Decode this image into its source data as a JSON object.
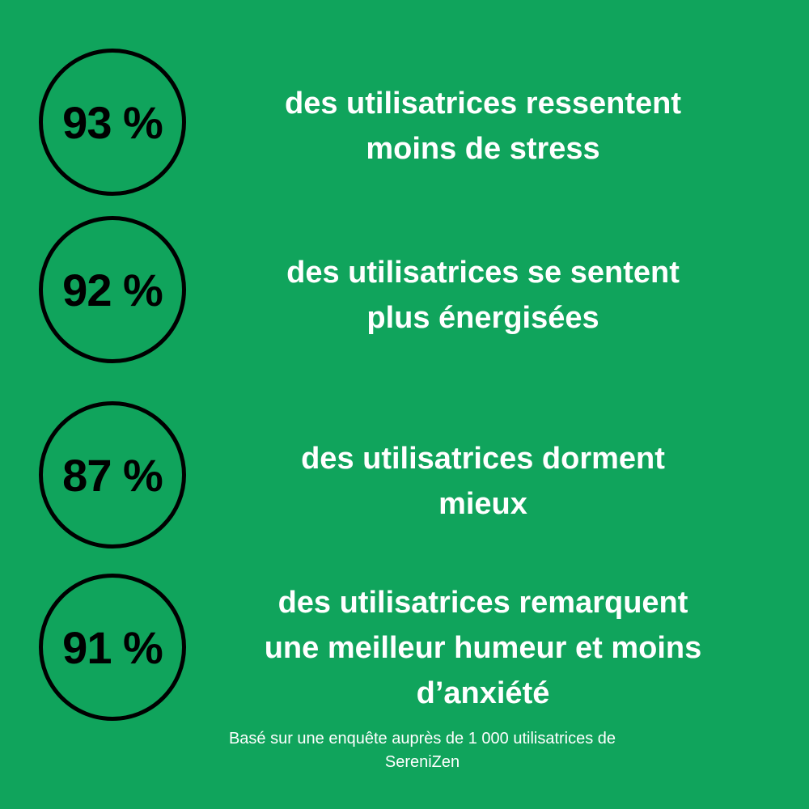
{
  "meta": {
    "background_color": "#10A45C",
    "heading_text_color": "#FFFFFF",
    "circle_border_color": "#000000",
    "percent_text_color": "#000000"
  },
  "stats": [
    {
      "percent": "93 %",
      "lines": [
        "des utilisatrices ressentent",
        "moins de stress"
      ]
    },
    {
      "percent": "92 %",
      "lines": [
        "des utilisatrices se sentent",
        "plus énergisées"
      ]
    },
    {
      "percent": "87 %",
      "lines": [
        "des utilisatrices dorment",
        "mieux"
      ]
    },
    {
      "percent": "91 %",
      "lines": [
        "des utilisatrices remarquent",
        "une meilleur humeur et moins",
        "d’anxiété"
      ]
    }
  ],
  "footer": {
    "lines": [
      "Basé sur une enquête auprès de 1 000 utilisatrices de",
      "SereniZen"
    ],
    "text": "Basé sur une enquête auprès de 1 000 utilisatrices de SereniZen"
  },
  "chart_data": {
    "type": "table",
    "categories": [
      "ressentent moins de stress",
      "se sentent plus énergisées",
      "dorment mieux",
      "remarquent une meilleur humeur et moins d’anxiété"
    ],
    "values": [
      93,
      92,
      87,
      91
    ],
    "unit": "%",
    "title": "",
    "source_note": "Basé sur une enquête auprès de 1 000 utilisatrices de SereniZen",
    "legend": false,
    "grid": false
  }
}
